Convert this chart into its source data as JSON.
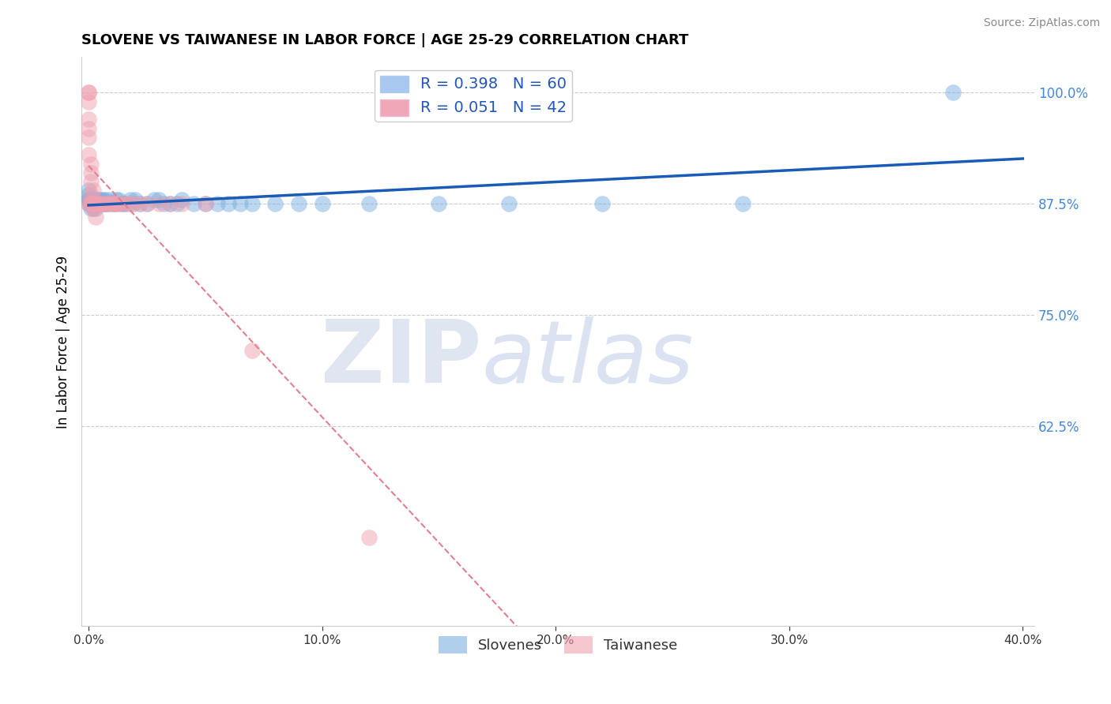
{
  "title": "SLOVENE VS TAIWANESE IN LABOR FORCE | AGE 25-29 CORRELATION CHART",
  "source_text": "Source: ZipAtlas.com",
  "ylabel": "In Labor Force | Age 25-29",
  "xlabel": "",
  "xlim": [
    -0.003,
    0.405
  ],
  "ylim": [
    0.4,
    1.04
  ],
  "yticks": [
    0.625,
    0.75,
    0.875,
    1.0
  ],
  "xticks": [
    0.0,
    0.1,
    0.2,
    0.3,
    0.4
  ],
  "slovene_color": "#7ab0e0",
  "taiwanese_color": "#f0a0b0",
  "trendline_slovene_color": "#1a5bb5",
  "trendline_taiwanese_color": "#e08090",
  "legend_entries": [
    {
      "label": "R = 0.398   N = 60",
      "color": "#a8c8f0"
    },
    {
      "label": "R = 0.051   N = 42",
      "color": "#f0a8b8"
    }
  ],
  "slovene_x": [
    0.0,
    0.0,
    0.0,
    0.0,
    0.0,
    0.001,
    0.001,
    0.001,
    0.001,
    0.001,
    0.002,
    0.002,
    0.002,
    0.002,
    0.003,
    0.003,
    0.003,
    0.004,
    0.004,
    0.005,
    0.005,
    0.006,
    0.006,
    0.007,
    0.007,
    0.008,
    0.009,
    0.01,
    0.011,
    0.012,
    0.013,
    0.014,
    0.015,
    0.016,
    0.018,
    0.019,
    0.02,
    0.022,
    0.025,
    0.028,
    0.03,
    0.032,
    0.035,
    0.038,
    0.04,
    0.045,
    0.05,
    0.055,
    0.06,
    0.065,
    0.07,
    0.08,
    0.09,
    0.1,
    0.12,
    0.15,
    0.18,
    0.22,
    0.28,
    0.37
  ],
  "slovene_y": [
    0.875,
    0.88,
    0.89,
    0.885,
    0.88,
    0.88,
    0.875,
    0.87,
    0.875,
    0.88,
    0.875,
    0.87,
    0.88,
    0.875,
    0.88,
    0.875,
    0.87,
    0.875,
    0.88,
    0.88,
    0.875,
    0.88,
    0.875,
    0.88,
    0.875,
    0.875,
    0.88,
    0.875,
    0.875,
    0.88,
    0.88,
    0.875,
    0.875,
    0.875,
    0.88,
    0.875,
    0.88,
    0.875,
    0.875,
    0.88,
    0.88,
    0.875,
    0.875,
    0.875,
    0.88,
    0.875,
    0.875,
    0.875,
    0.875,
    0.875,
    0.875,
    0.875,
    0.875,
    0.875,
    0.875,
    0.875,
    0.875,
    0.875,
    0.875,
    1.0
  ],
  "taiwanese_x": [
    0.0,
    0.0,
    0.0,
    0.0,
    0.0,
    0.0,
    0.0,
    0.0,
    0.001,
    0.001,
    0.001,
    0.001,
    0.001,
    0.001,
    0.002,
    0.002,
    0.002,
    0.002,
    0.003,
    0.003,
    0.004,
    0.004,
    0.005,
    0.006,
    0.007,
    0.008,
    0.009,
    0.01,
    0.011,
    0.012,
    0.013,
    0.015,
    0.017,
    0.019,
    0.022,
    0.025,
    0.03,
    0.035,
    0.04,
    0.05,
    0.07,
    0.12
  ],
  "taiwanese_y": [
    1.0,
    1.0,
    0.99,
    0.97,
    0.96,
    0.95,
    0.93,
    0.875,
    0.92,
    0.91,
    0.9,
    0.885,
    0.875,
    0.875,
    0.89,
    0.875,
    0.875,
    0.87,
    0.875,
    0.86,
    0.875,
    0.875,
    0.875,
    0.875,
    0.875,
    0.875,
    0.875,
    0.875,
    0.875,
    0.875,
    0.875,
    0.875,
    0.875,
    0.875,
    0.875,
    0.875,
    0.875,
    0.875,
    0.875,
    0.875,
    0.71,
    0.5
  ]
}
